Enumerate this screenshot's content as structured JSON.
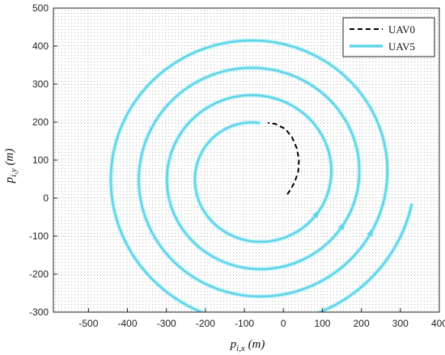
{
  "chart_data": {
    "type": "line",
    "xlabel": "p_{i,x} (m)",
    "ylabel": "p_{i,y} (m)",
    "xlim": [
      -590,
      400
    ],
    "ylim": [
      -300,
      500
    ],
    "xticks": [
      -500,
      -400,
      -300,
      -200,
      -100,
      0,
      100,
      200,
      300,
      400
    ],
    "yticks": [
      -300,
      -200,
      -100,
      0,
      100,
      200,
      300,
      400,
      500
    ],
    "grid": "dense dotted",
    "legend_position": "top-right",
    "series": [
      {
        "name": "UAV0",
        "style": "dashed",
        "color": "#000000",
        "points": [
          [
            10,
            10
          ],
          [
            20,
            25
          ],
          [
            30,
            45
          ],
          [
            38,
            70
          ],
          [
            40,
            100
          ],
          [
            35,
            130
          ],
          [
            22,
            160
          ],
          [
            5,
            182
          ],
          [
            -20,
            195
          ],
          [
            -40,
            198
          ]
        ]
      },
      {
        "name": "UAV5",
        "style": "solid",
        "color": "#5fd4e8",
        "spiral": {
          "center": [
            -70,
            60
          ],
          "radius_start": 138,
          "radius_growth_per_turn": 72,
          "angle_start_deg": 87,
          "angle_end_deg": 1430
        }
      }
    ]
  },
  "labels": {
    "xlabel_main": "p",
    "xlabel_sub": "i,x",
    "xlabel_unit": " (m)",
    "ylabel_main": "p",
    "ylabel_sub": "i,y",
    "ylabel_unit": " (m)",
    "legend_uav0": "UAV0",
    "legend_uav5": "UAV5"
  }
}
